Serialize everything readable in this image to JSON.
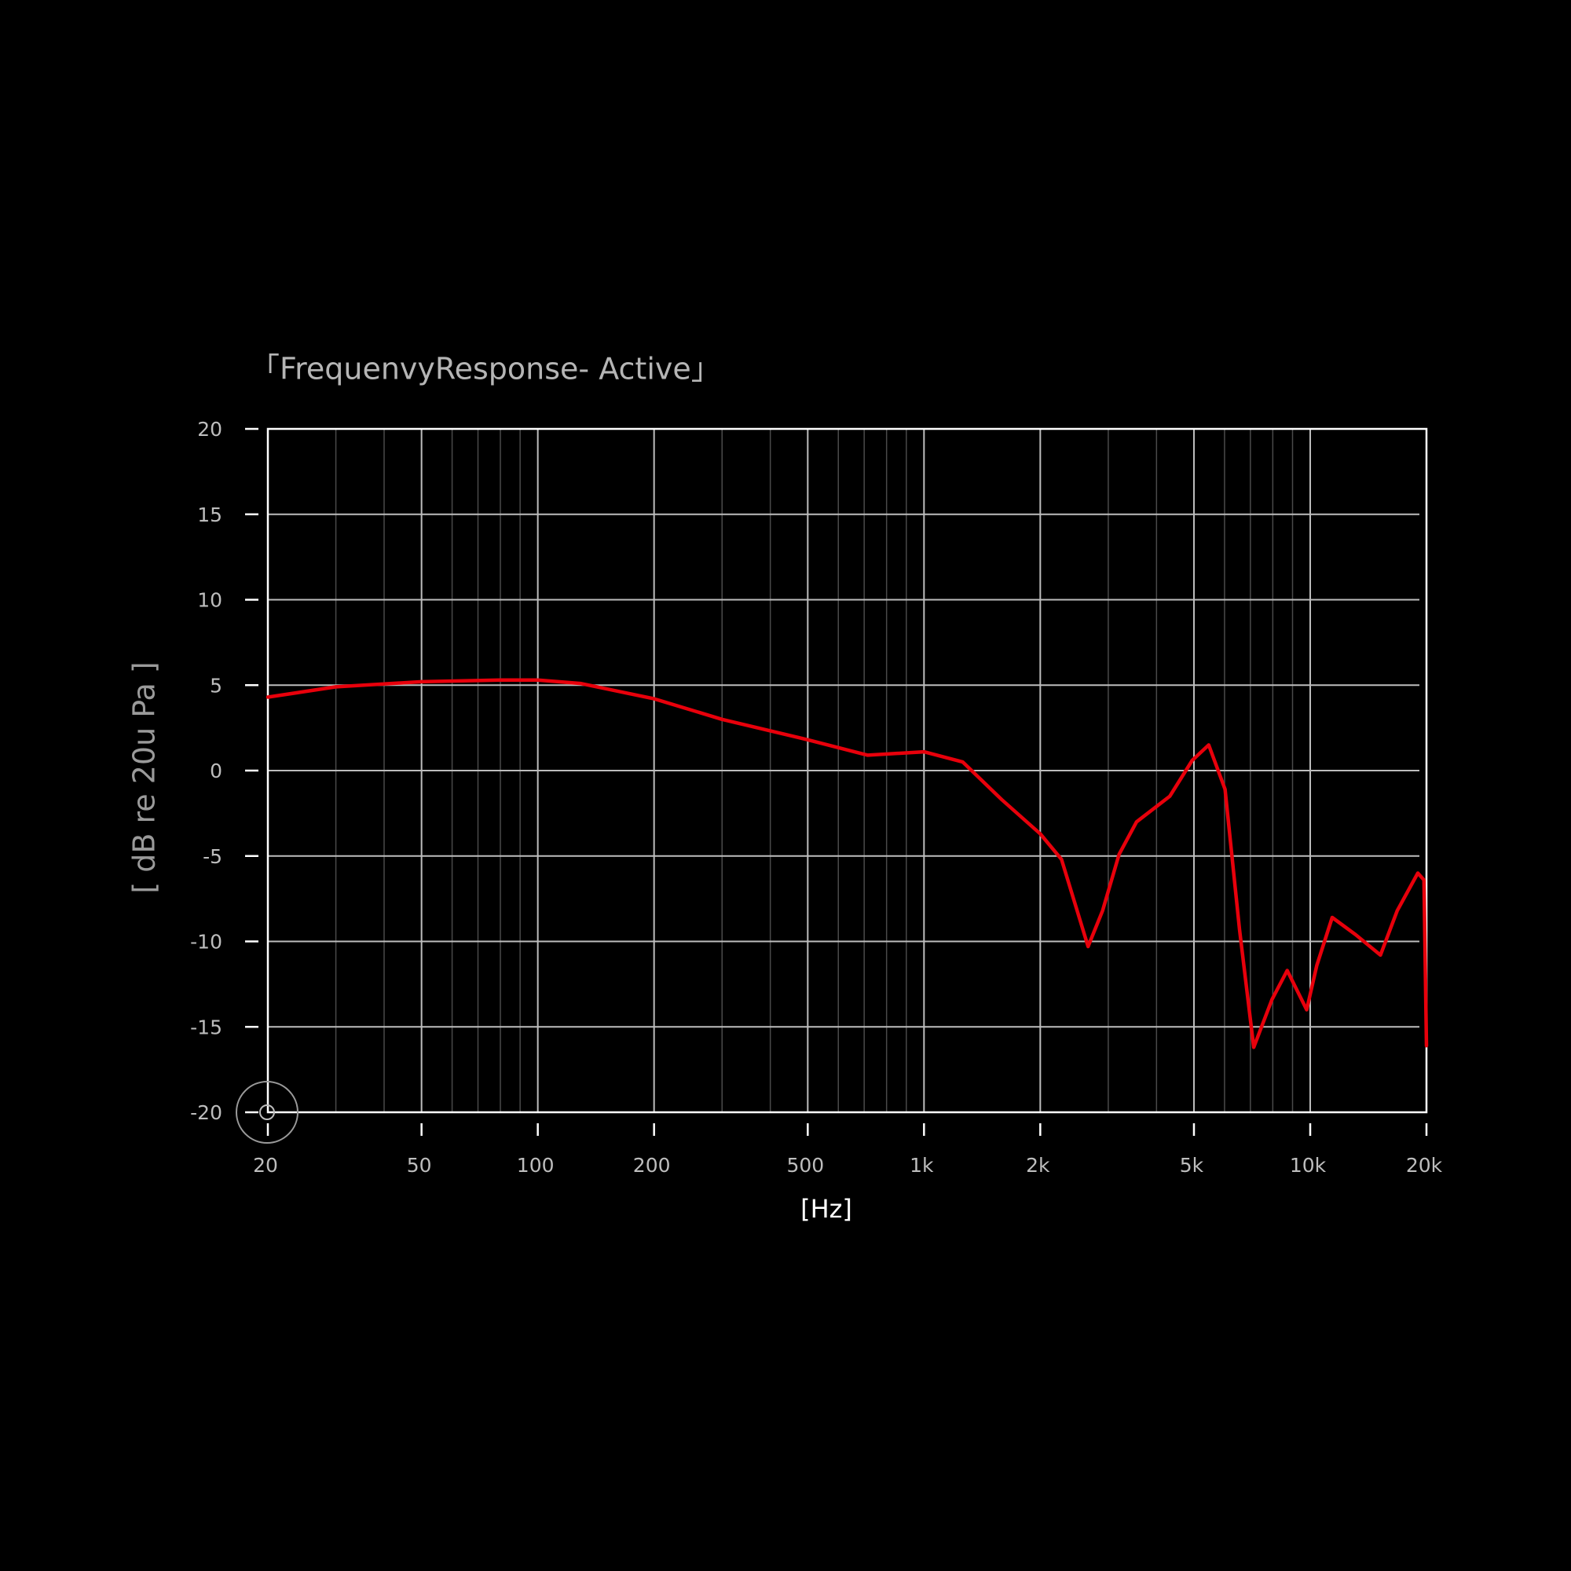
{
  "chart_data": {
    "type": "line",
    "title": "「FrequenvyResponse- Active」",
    "xlabel": "[Hz]",
    "ylabel": "[ dB re 20u Pa ]",
    "x": [
      20,
      30,
      50,
      80,
      100,
      129,
      200,
      300,
      500,
      715,
      1000,
      1260,
      1590,
      2000,
      2270,
      2660,
      2900,
      3200,
      3550,
      4330,
      4950,
      5460,
      6020,
      6560,
      7140,
      7960,
      8720,
      9790,
      10400,
      11400,
      13100,
      15200,
      16800,
      19000,
      19700,
      20000
    ],
    "series": [
      {
        "name": "Active",
        "color": "#e8000b",
        "values": [
          4.3,
          4.9,
          5.2,
          5.3,
          5.3,
          5.1,
          4.2,
          3.0,
          1.8,
          0.9,
          1.1,
          0.5,
          -1.7,
          -3.7,
          -5.2,
          -10.3,
          -8.2,
          -4.9,
          -3.0,
          -1.5,
          0.6,
          1.5,
          -1.1,
          -9.3,
          -16.2,
          -13.4,
          -11.7,
          -14.0,
          -11.4,
          -8.6,
          -9.6,
          -10.8,
          -8.2,
          -6.0,
          -6.4,
          -16.1
        ]
      }
    ],
    "xscale": "log",
    "xlim": [
      20,
      20000
    ],
    "ylim": [
      -20,
      20
    ],
    "xticks": [
      20,
      50,
      100,
      200,
      500,
      {
        "value": 1000,
        "label": "1k"
      },
      {
        "value": 2000,
        "label": "2k"
      },
      {
        "value": 5000,
        "label": "5k"
      },
      {
        "value": 10000,
        "label": "10k"
      },
      {
        "value": 20000,
        "label": "20k"
      }
    ],
    "xminorticks": [
      30,
      40,
      60,
      70,
      80,
      90,
      300,
      400,
      600,
      700,
      800,
      900,
      3000,
      4000,
      6000,
      7000,
      8000,
      9000
    ],
    "yticks": [
      -20,
      -15,
      -10,
      -5,
      0,
      5,
      10,
      15,
      20
    ],
    "grid": true
  }
}
